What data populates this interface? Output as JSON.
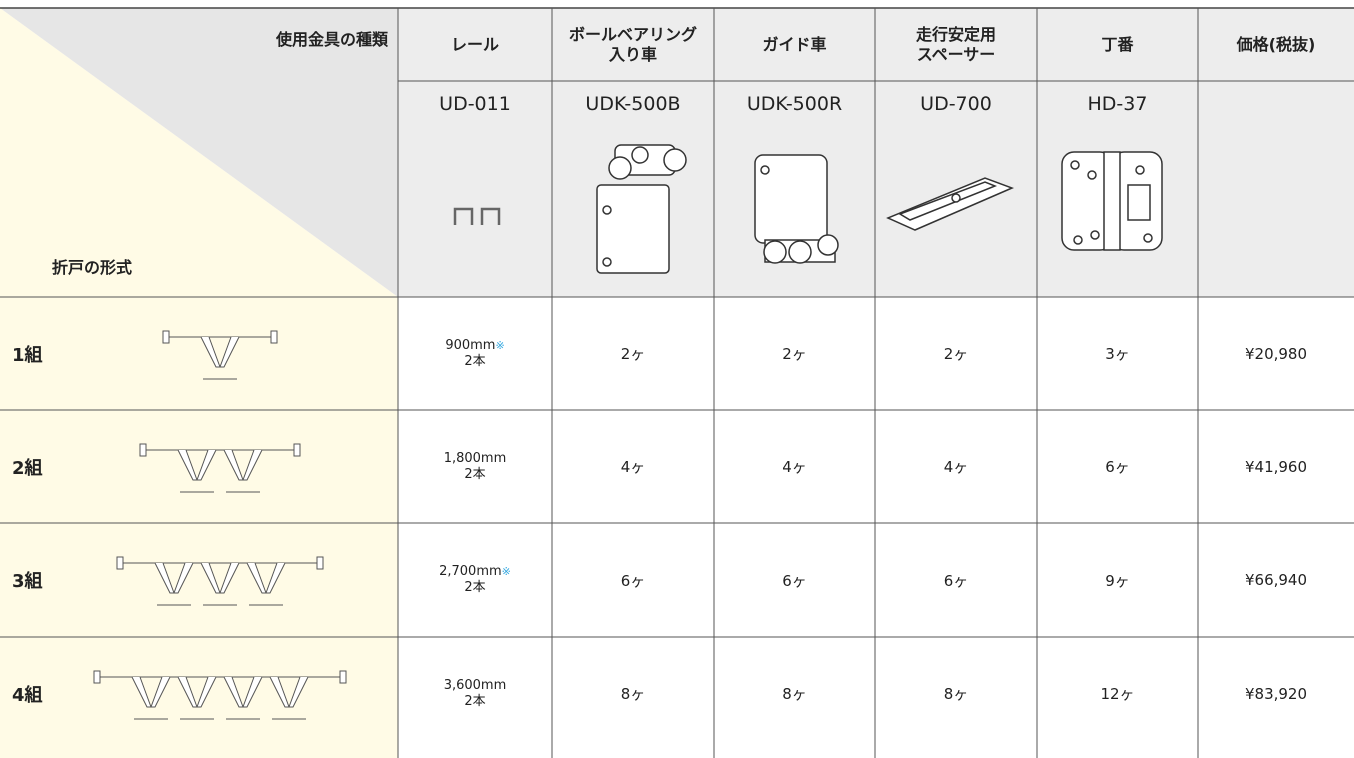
{
  "header": {
    "hardware_label": "使用金具の種類",
    "door_label": "折戸の形式"
  },
  "columns": [
    {
      "name": [
        "レール"
      ],
      "code": "UD-011"
    },
    {
      "name": [
        "ボールベアリング",
        "入り車"
      ],
      "code": "UDK-500B"
    },
    {
      "name": [
        "ガイド車"
      ],
      "code": "UDK-500R"
    },
    {
      "name": [
        "走行安定用",
        "スペーサー"
      ],
      "code": "UD-700"
    },
    {
      "name": [
        "丁番"
      ],
      "code": "HD-37"
    },
    {
      "name": [
        "価格(税抜)"
      ]
    }
  ],
  "rows": [
    {
      "label": "1組",
      "rail": {
        "length": "900mm",
        "mark": "※",
        "count": "2本"
      },
      "counts": [
        "2ヶ",
        "2ヶ",
        "2ヶ",
        "3ヶ"
      ],
      "price": "¥20,980"
    },
    {
      "label": "2組",
      "rail": {
        "length": "1,800mm",
        "count": "2本"
      },
      "counts": [
        "4ヶ",
        "4ヶ",
        "4ヶ",
        "6ヶ"
      ],
      "price": "¥41,960"
    },
    {
      "label": "3組",
      "rail": {
        "length": "2,700mm",
        "mark": "※",
        "count": "2本"
      },
      "counts": [
        "6ヶ",
        "6ヶ",
        "6ヶ",
        "9ヶ"
      ],
      "price": "¥66,940"
    },
    {
      "label": "4組",
      "rail": {
        "length": "3,600mm",
        "count": "2本"
      },
      "counts": [
        "8ヶ",
        "8ヶ",
        "8ヶ",
        "12ヶ"
      ],
      "price": "¥83,920"
    }
  ]
}
